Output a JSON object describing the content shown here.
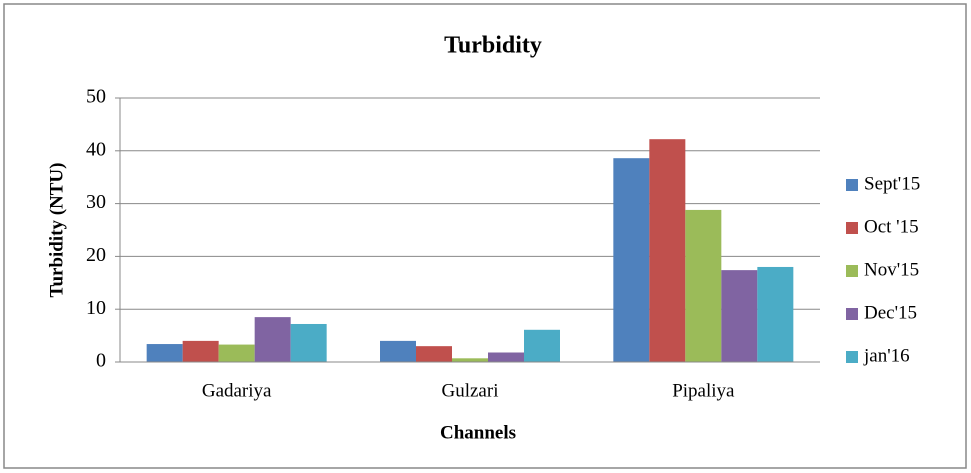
{
  "chart_data": {
    "type": "bar",
    "title": "Turbidity",
    "x_label": "Channels",
    "y_label": "Turbidity  (NTU)",
    "categories": [
      "Gadariya",
      "Gulzari",
      "Pipaliya"
    ],
    "series": [
      {
        "name": "Sept'15",
        "color": "#4f81bd",
        "values": [
          3.4,
          4.0,
          38.6
        ]
      },
      {
        "name": "Oct '15",
        "color": "#c0504d",
        "values": [
          4.0,
          3.0,
          42.2
        ]
      },
      {
        "name": "Nov'15",
        "color": "#9bbb59",
        "values": [
          3.3,
          0.7,
          28.8
        ]
      },
      {
        "name": "Dec'15",
        "color": "#8064a2",
        "values": [
          8.5,
          1.8,
          17.4
        ]
      },
      {
        "name": "jan'16",
        "color": "#4bacc6",
        "values": [
          7.2,
          6.1,
          18.0
        ]
      }
    ],
    "ylim": [
      0,
      50
    ],
    "yticks": [
      0,
      10,
      20,
      30,
      40,
      50
    ],
    "grid": true,
    "legend": "right"
  }
}
